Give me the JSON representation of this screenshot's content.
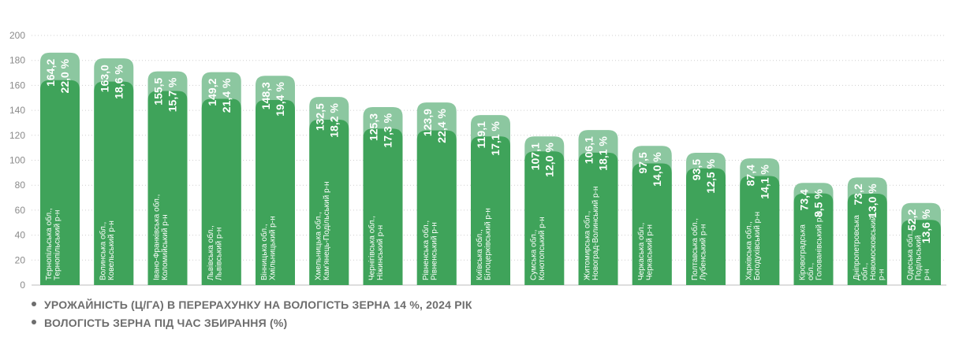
{
  "chart_data": {
    "type": "bar",
    "ylim": [
      0,
      200
    ],
    "yticks": [
      0,
      20,
      40,
      60,
      80,
      100,
      120,
      140,
      160,
      180,
      200
    ],
    "grid": true,
    "colors": {
      "yield": "#3fa35a",
      "moisture": "#8cc7a0"
    },
    "categories": [
      "Тернопільська обл., Тернопільський р-н",
      "Волинська обл., Ковельський р-н",
      "Івано-Франківська обл., Коломийський р-н",
      "Львівська обл., Львівський р-н",
      "Вінницька обл., Хмільницький р-н",
      "Хмельницька обл., Кам'янець-Подільський р-н",
      "Чернігівська обл., Ніжинський р-н",
      "Рівненська обл., Рівненський р-н",
      "Київська обл., Білоцерківський р-н",
      "Сумська обл., Конотопський р-н",
      "Житомирська обл., Новоград-Волинський р-н",
      "Черкаська обл., Черкаський р-н",
      "Полтавська обл., Лубенський р-н",
      "Харківська обл., Богодухівський р-н",
      "Кіровоградська обл., Голованівський р-н",
      "Дніпропетровська обл., Новомосковський р-н",
      "Одеська обл., Подільський р-н"
    ],
    "category_lines": [
      [
        "Тернопільська обл.,",
        "Тернопільський р-н"
      ],
      [
        "Волинська обл.,",
        "Ковельський р-н"
      ],
      [
        "Івано-Франківська обл.,",
        "Коломийський р-н"
      ],
      [
        "Львівська обл.,",
        "Львівський р-н"
      ],
      [
        "Вінницька обл.,",
        "Хмільницький р-н"
      ],
      [
        "Хмельницька обл.,",
        "Кам'янець-Подільський р-н"
      ],
      [
        "Чернігівська обл.,",
        "Ніжинський р-н"
      ],
      [
        "Рівненська обл.,",
        "Рівненський р-н"
      ],
      [
        "Київська обл.,",
        "Білоцерківський р-н"
      ],
      [
        "Сумська обл.,",
        "Конотопський р-н"
      ],
      [
        "Житомирська обл.,",
        "Новоград-Волинський р-н"
      ],
      [
        "Черкаська обл.,",
        "Черкаський р-н"
      ],
      [
        "Полтавська обл.,",
        "Лубенський р-н"
      ],
      [
        "Харківська обл.,",
        "Богодухівський р-н"
      ],
      [
        "Кіровоградська",
        "обл.,",
        "Голованівський р-н"
      ],
      [
        "Дніпропетровська",
        "обл.,",
        "Новомосковський",
        "р-н"
      ],
      [
        "Одеська обл.,",
        "Подільський",
        "р-н"
      ]
    ],
    "series": [
      {
        "name": "УРОЖАЙНІСТЬ (Ц/ГА) В ПЕРЕРАХУНКУ НА ВОЛОГІСТЬ ЗЕРНА 14 %, 2024 РІК",
        "values": [
          164.2,
          163.0,
          155.5,
          149.2,
          148.3,
          132.5,
          125.3,
          123.9,
          119.1,
          107.1,
          106.1,
          97.5,
          93.5,
          87.4,
          73.4,
          73.2,
          52.2
        ],
        "labels": [
          "164,2",
          "163,0",
          "155,5",
          "149,2",
          "148,3",
          "132,5",
          "125,3",
          "123,9",
          "119,1",
          "107,1",
          "106,1",
          "97,5",
          "93,5",
          "87,4",
          "73,4",
          "73,2",
          "52,2"
        ]
      },
      {
        "name": "ВОЛОГІСТЬ ЗЕРНА ПІД ЧАС ЗБИРАННЯ (%)",
        "values": [
          22.0,
          18.6,
          15.7,
          21.4,
          19.4,
          18.2,
          17.3,
          22.4,
          17.1,
          12.0,
          18.1,
          14.0,
          12.5,
          14.1,
          8.5,
          13.0,
          13.6
        ],
        "labels": [
          "22,0 %",
          "18,6 %",
          "15,7 %",
          "21,4 %",
          "19,4 %",
          "18,2 %",
          "17,3 %",
          "22,4 %",
          "17,1 %",
          "12,0 %",
          "18,1 %",
          "14,0 %",
          "12,5 %",
          "14,1 %",
          "8,5 %",
          "13,0 %",
          "13,6 %"
        ]
      }
    ]
  },
  "legend": {
    "item1": "УРОЖАЙНІСТЬ (Ц/ГА) В ПЕРЕРАХУНКУ НА ВОЛОГІСТЬ ЗЕРНА 14 %, 2024 РІК",
    "item2": "ВОЛОГІСТЬ ЗЕРНА ПІД ЧАС ЗБИРАННЯ (%)"
  }
}
